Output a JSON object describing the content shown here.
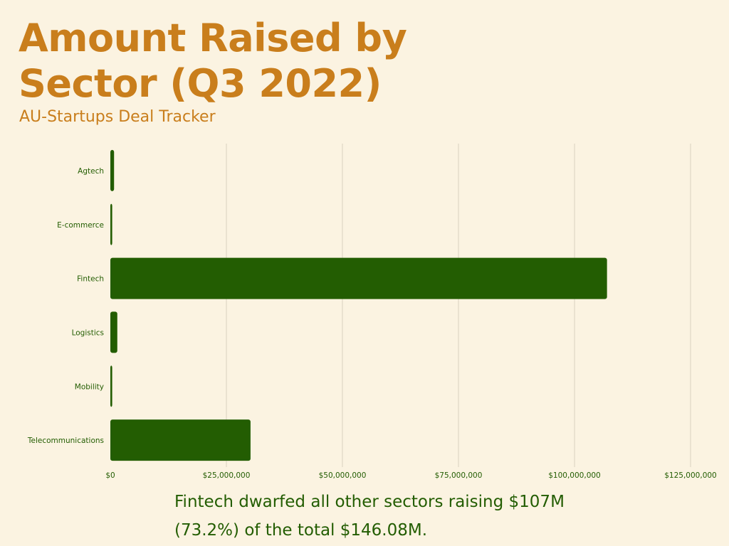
{
  "header": {
    "title": "Amount Raised by Sector (Q3 2022)",
    "subtitle": "AU-Startups Deal Tracker"
  },
  "caption": "Fintech dwarfed all other sectors raising $107M (73.2%) of the total $146.08M.",
  "colors": {
    "background": "#fbf3e1",
    "title": "#c97e1c",
    "bar": "#235d02",
    "text": "#235d02",
    "grid": "#d9d2c0"
  },
  "chart_data": {
    "type": "bar",
    "orientation": "horizontal",
    "title": "Amount Raised by Sector (Q3 2022)",
    "subtitle": "AU-Startups Deal Tracker",
    "categories": [
      "Agtech",
      "E-commerce",
      "Fintech",
      "Logistics",
      "Mobility",
      "Telecommunications"
    ],
    "values": [
      800000,
      400000,
      107000000,
      1500000,
      400000,
      30200000
    ],
    "xlim": [
      0,
      125000000
    ],
    "x_ticks": [
      0,
      25000000,
      50000000,
      75000000,
      100000000,
      125000000
    ],
    "x_tick_labels": [
      "$0",
      "$25,000,000",
      "$50,000,000",
      "$75,000,000",
      "$100,000,000",
      "$125,000,000"
    ],
    "xlabel": "",
    "ylabel": "",
    "grid": "vertical",
    "legend": "none"
  }
}
